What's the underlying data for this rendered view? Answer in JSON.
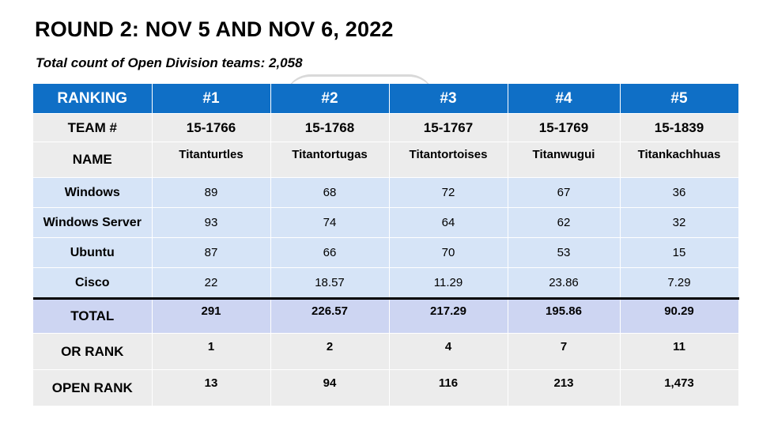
{
  "title": "ROUND 2: NOV 5 AND NOV 6, 2022",
  "subtitle": "Total count of Open Division teams: 2,058",
  "table": {
    "header": [
      "RANKING",
      "#1",
      "#2",
      "#3",
      "#4",
      "#5"
    ],
    "team": {
      "label": "TEAM #",
      "values": [
        "15-1766",
        "15-1768",
        "15-1767",
        "15-1769",
        "15-1839"
      ]
    },
    "name": {
      "label": "NAME",
      "values": [
        "Titanturtles",
        "Titantortugas",
        "Titantortoises",
        "Titanwugui",
        "Titankachhuas"
      ]
    },
    "os_rows": [
      {
        "label": "Windows",
        "values": [
          "89",
          "68",
          "72",
          "67",
          "36"
        ]
      },
      {
        "label": "Windows Server",
        "values": [
          "93",
          "74",
          "64",
          "62",
          "32"
        ]
      },
      {
        "label": "Ubuntu",
        "values": [
          "87",
          "66",
          "70",
          "53",
          "15"
        ]
      },
      {
        "label": "Cisco",
        "values": [
          "22",
          "18.57",
          "11.29",
          "23.86",
          "7.29"
        ]
      }
    ],
    "total": {
      "label": "TOTAL",
      "values": [
        "291",
        "226.57",
        "217.29",
        "195.86",
        "90.29"
      ]
    },
    "or_rank": {
      "label": "OR RANK",
      "values": [
        "1",
        "2",
        "4",
        "7",
        "11"
      ]
    },
    "open_rank": {
      "label": "OPEN RANK",
      "values": [
        "13",
        "94",
        "116",
        "213",
        "1,473"
      ]
    }
  },
  "colors": {
    "header_bg": "#0f6fc6",
    "label_row_bg": "#ececec",
    "score_row_bg": "#d6e4f7",
    "total_row_bg": "#cdd5f2"
  }
}
